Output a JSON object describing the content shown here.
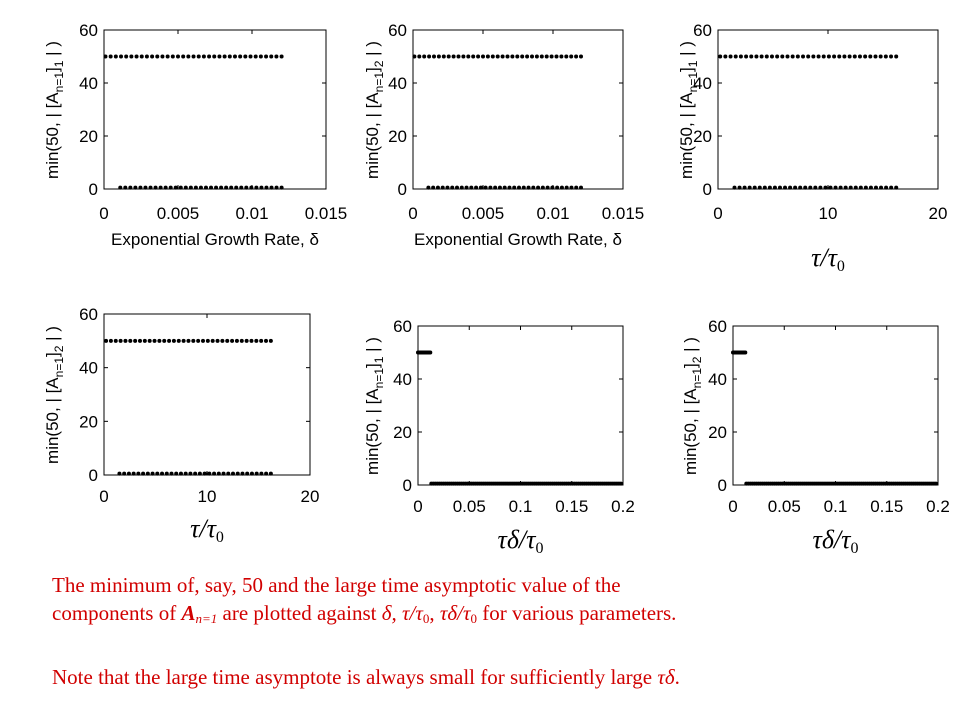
{
  "chart_data": [
    {
      "type": "scatter",
      "ylabel": "min(50, | [A_{n=1}]_1 | )",
      "ylabel_parts": {
        "pre": "min(50,  | [A",
        "sub1": "n=1",
        "mid": "]",
        "sub2": "1",
        "post": " | )"
      },
      "xlabel": "Exponential Growth Rate, δ",
      "xlabel_style": "sans",
      "xlim": [
        0,
        0.015
      ],
      "ylim": [
        0,
        60
      ],
      "xticks": [
        0,
        0.005,
        0.01,
        0.015
      ],
      "xtick_labels": [
        "0",
        "0.005",
        "0.01",
        "0.015"
      ],
      "yticks": [
        0,
        20,
        40,
        60
      ],
      "ytick_labels": [
        "0",
        "20",
        "40",
        "60"
      ],
      "series": [
        {
          "x_start": 0.0001,
          "x_end": 0.012,
          "y": 50,
          "count": 35
        },
        {
          "x_start": 0.0011,
          "x_end": 0.012,
          "y": 0.5,
          "count": 33
        }
      ]
    },
    {
      "type": "scatter",
      "ylabel": "min(50, | [A_{n=1}]_2 | )",
      "ylabel_parts": {
        "pre": "min(50,  | [A",
        "sub1": "n=1",
        "mid": "]",
        "sub2": "2",
        "post": " | )"
      },
      "xlabel": "Exponential Growth Rate, δ",
      "xlabel_style": "sans",
      "xlim": [
        0,
        0.015
      ],
      "ylim": [
        0,
        60
      ],
      "xticks": [
        0,
        0.005,
        0.01,
        0.015
      ],
      "xtick_labels": [
        "0",
        "0.005",
        "0.01",
        "0.015"
      ],
      "yticks": [
        0,
        20,
        40,
        60
      ],
      "ytick_labels": [
        "0",
        "20",
        "40",
        "60"
      ],
      "series": [
        {
          "x_start": 0.0001,
          "x_end": 0.012,
          "y": 50,
          "count": 35
        },
        {
          "x_start": 0.0011,
          "x_end": 0.012,
          "y": 0.5,
          "count": 33
        }
      ]
    },
    {
      "type": "scatter",
      "ylabel": "min(50, | [A_{n=1}]_1 | )",
      "ylabel_parts": {
        "pre": "min(50,  | [A",
        "sub1": "n=1",
        "mid": "]",
        "sub2": "1",
        "post": " | )"
      },
      "xlabel": "τ/τ0",
      "xlabel_style": "greek",
      "xlim": [
        0,
        20
      ],
      "ylim": [
        0,
        60
      ],
      "xticks": [
        0,
        10,
        20
      ],
      "xtick_labels": [
        "0",
        "10",
        "20"
      ],
      "yticks": [
        0,
        20,
        40,
        60
      ],
      "ytick_labels": [
        "0",
        "20",
        "40",
        "60"
      ],
      "series": [
        {
          "x_start": 0.2,
          "x_end": 16.2,
          "y": 50,
          "count": 35
        },
        {
          "x_start": 1.5,
          "x_end": 16.2,
          "y": 0.5,
          "count": 33
        }
      ]
    },
    {
      "type": "scatter",
      "ylabel": "min(50, | [A_{n=1}]_2 | )",
      "ylabel_parts": {
        "pre": "min(50,  | [A",
        "sub1": "n=1",
        "mid": "]",
        "sub2": "2",
        "post": " | )"
      },
      "xlabel": "τ/τ0",
      "xlabel_style": "greek",
      "xlim": [
        0,
        20
      ],
      "ylim": [
        0,
        60
      ],
      "xticks": [
        0,
        10,
        20
      ],
      "xtick_labels": [
        "0",
        "10",
        "20"
      ],
      "yticks": [
        0,
        20,
        40,
        60
      ],
      "ytick_labels": [
        "0",
        "20",
        "40",
        "60"
      ],
      "series": [
        {
          "x_start": 0.2,
          "x_end": 16.2,
          "y": 50,
          "count": 35
        },
        {
          "x_start": 1.5,
          "x_end": 16.2,
          "y": 0.5,
          "count": 33
        }
      ]
    },
    {
      "type": "scatter",
      "ylabel": "min(50, | [A_{n=1}]_1 | )",
      "ylabel_parts": {
        "pre": "min(50,  | [A",
        "sub1": "n=1",
        "mid": "]",
        "sub2": "1",
        "post": " | )"
      },
      "xlabel": "τδ/τ0",
      "xlabel_style": "greek",
      "xlim": [
        0,
        0.2
      ],
      "ylim": [
        0,
        60
      ],
      "xticks": [
        0,
        0.05,
        0.1,
        0.15,
        0.2
      ],
      "xtick_labels": [
        "0",
        "0.05",
        "0.1",
        "0.15",
        "0.2"
      ],
      "yticks": [
        0,
        20,
        40,
        60
      ],
      "ytick_labels": [
        "0",
        "20",
        "40",
        "60"
      ],
      "series": [
        {
          "x_start": 0.0,
          "x_end": 0.012,
          "y": 50,
          "count": 14
        },
        {
          "x_start": 0.013,
          "x_end": 0.198,
          "y": 0.5,
          "count": 95
        }
      ]
    },
    {
      "type": "scatter",
      "ylabel": "min(50, | [A_{n=1}]_2 | )",
      "ylabel_parts": {
        "pre": "min(50,  | [A",
        "sub1": "n=1",
        "mid": "]",
        "sub2": "2",
        "post": " | )"
      },
      "xlabel": "τδ/τ0",
      "xlabel_style": "greek",
      "xlim": [
        0,
        0.2
      ],
      "ylim": [
        0,
        60
      ],
      "xticks": [
        0,
        0.05,
        0.1,
        0.15,
        0.2
      ],
      "xtick_labels": [
        "0",
        "0.05",
        "0.1",
        "0.15",
        "0.2"
      ],
      "yticks": [
        0,
        20,
        40,
        60
      ],
      "ytick_labels": [
        "0",
        "20",
        "40",
        "60"
      ],
      "series": [
        {
          "x_start": 0.0,
          "x_end": 0.012,
          "y": 50,
          "count": 14
        },
        {
          "x_start": 0.013,
          "x_end": 0.198,
          "y": 0.5,
          "count": 95
        }
      ]
    }
  ],
  "caption": {
    "line1_a": "The minimum of, say, 50 and the large time asymptotic value of the",
    "line2_a": "components of ",
    "line2_A": "A",
    "line2_sub": "n=1",
    "line2_b": " are plotted against ",
    "line2_vars": "δ, τ/τ",
    "line2_sub0a": "0",
    "line2_c": ", ",
    "line2_vars2": "τδ/τ",
    "line2_sub0b": "0",
    "line2_d": " for various parameters.",
    "note_a": "Note that the large time asymptote is always small for sufficiently large ",
    "note_var": "τδ",
    "note_b": "."
  },
  "colors": {
    "caption": "#d10000",
    "marker": "#000000",
    "axis": "#000000"
  }
}
